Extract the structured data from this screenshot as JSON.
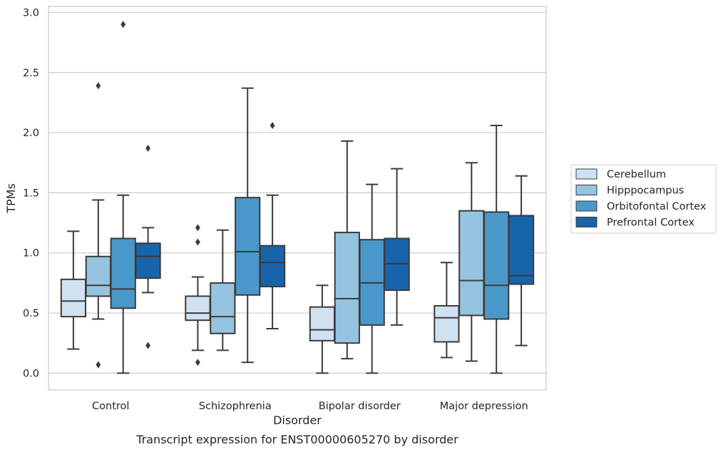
{
  "chart_data": {
    "type": "box",
    "caption": "Transcript expression for ENST00000605270 by disorder",
    "xlabel": "Disorder",
    "ylabel": "TPMs",
    "ylim": [
      -0.14,
      3.05
    ],
    "yticks": [
      0.0,
      0.5,
      1.0,
      1.5,
      2.0,
      2.5,
      3.0
    ],
    "ytick_labels": [
      "0.0",
      "0.5",
      "1.0",
      "1.5",
      "2.0",
      "2.5",
      "3.0"
    ],
    "grid": "horizontal",
    "legend_position": "right",
    "categories": [
      "Control",
      "Schizophrenia",
      "Bipolar disorder",
      "Major depression"
    ],
    "series": [
      {
        "name": "Cerebellum",
        "color": "#d0e1f2",
        "boxes": [
          {
            "whislo": 0.2,
            "q1": 0.47,
            "med": 0.6,
            "q3": 0.78,
            "whishi": 1.18,
            "fliers": []
          },
          {
            "whislo": 0.19,
            "q1": 0.44,
            "med": 0.5,
            "q3": 0.64,
            "whishi": 0.8,
            "fliers": [
              1.21,
              1.09,
              0.09
            ]
          },
          {
            "whislo": 0.0,
            "q1": 0.27,
            "med": 0.36,
            "q3": 0.55,
            "whishi": 0.73,
            "fliers": []
          },
          {
            "whislo": 0.13,
            "q1": 0.26,
            "med": 0.46,
            "q3": 0.56,
            "whishi": 0.92,
            "fliers": []
          }
        ]
      },
      {
        "name": "Hipppocampus",
        "color": "#94c4df",
        "boxes": [
          {
            "whislo": 0.45,
            "q1": 0.64,
            "med": 0.73,
            "q3": 0.97,
            "whishi": 1.44,
            "fliers": [
              2.39,
              0.07
            ]
          },
          {
            "whislo": 0.19,
            "q1": 0.33,
            "med": 0.47,
            "q3": 0.75,
            "whishi": 1.19,
            "fliers": []
          },
          {
            "whislo": 0.12,
            "q1": 0.25,
            "med": 0.62,
            "q3": 1.17,
            "whishi": 1.93,
            "fliers": []
          },
          {
            "whislo": 0.1,
            "q1": 0.48,
            "med": 0.77,
            "q3": 1.35,
            "whishi": 1.75,
            "fliers": []
          }
        ]
      },
      {
        "name": "Orbitofontal Cortex",
        "color": "#4a98c9",
        "boxes": [
          {
            "whislo": 0.0,
            "q1": 0.54,
            "med": 0.7,
            "q3": 1.12,
            "whishi": 1.48,
            "fliers": [
              2.9
            ]
          },
          {
            "whislo": 0.09,
            "q1": 0.65,
            "med": 1.01,
            "q3": 1.46,
            "whishi": 2.37,
            "fliers": []
          },
          {
            "whislo": 0.0,
            "q1": 0.4,
            "med": 0.75,
            "q3": 1.11,
            "whishi": 1.57,
            "fliers": []
          },
          {
            "whislo": 0.0,
            "q1": 0.45,
            "med": 0.73,
            "q3": 1.34,
            "whishi": 2.06,
            "fliers": []
          }
        ]
      },
      {
        "name": "Prefrontal Cortex",
        "color": "#1764ab",
        "boxes": [
          {
            "whislo": 0.67,
            "q1": 0.79,
            "med": 0.97,
            "q3": 1.08,
            "whishi": 1.21,
            "fliers": [
              1.87,
              0.23
            ]
          },
          {
            "whislo": 0.37,
            "q1": 0.72,
            "med": 0.92,
            "q3": 1.06,
            "whishi": 1.48,
            "fliers": [
              2.06
            ]
          },
          {
            "whislo": 0.4,
            "q1": 0.69,
            "med": 0.91,
            "q3": 1.12,
            "whishi": 1.7,
            "fliers": []
          },
          {
            "whislo": 0.23,
            "q1": 0.74,
            "med": 0.81,
            "q3": 1.31,
            "whishi": 1.64,
            "fliers": []
          }
        ]
      }
    ]
  }
}
